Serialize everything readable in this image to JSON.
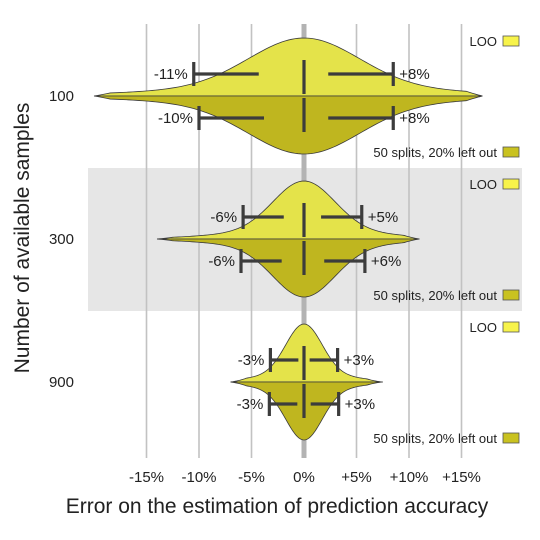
{
  "chart_data": {
    "type": "violin",
    "title": "",
    "xlabel": "Error on the estimation of prediction accuracy",
    "ylabel": "Number of available samples",
    "x_unit": "%",
    "xlim": [
      -18,
      19
    ],
    "x_ticks": [
      -15,
      -10,
      -5,
      0,
      5,
      10,
      15
    ],
    "x_tick_labels": [
      "-15%",
      "-10%",
      "-5%",
      "0%",
      "+5%",
      "+10%",
      "+15%"
    ],
    "grid": "vertical",
    "legend_placement": "right of each group",
    "colors": {
      "loo": "#e4e34a",
      "splits": "#bfb61f",
      "loo_legend": "#f7f34a",
      "splits_legend": "#c9c220",
      "band": "#e6e6e6"
    },
    "series": [
      {
        "name": "LOO",
        "side": "upper"
      },
      {
        "name": "50 splits, 20% left out",
        "side": "lower"
      }
    ],
    "groups": [
      {
        "label": "100",
        "shaded": false,
        "range": [
          -20,
          17
        ],
        "bandwidth": 5.2,
        "LOO": {
          "mean": 0,
          "low": -10.5,
          "high": 8.5,
          "low_label": "-11%",
          "high_label": "+8%"
        },
        "splits": {
          "mean": 0,
          "low": -10,
          "high": 8.5,
          "low_label": "-10%",
          "high_label": "+8%"
        }
      },
      {
        "label": "300",
        "shaded": true,
        "range": [
          -14,
          11
        ],
        "bandwidth": 2.9,
        "LOO": {
          "mean": 0,
          "low": -5.8,
          "high": 5.5,
          "low_label": "-6%",
          "high_label": "+5%"
        },
        "splits": {
          "mean": 0,
          "low": -6,
          "high": 5.8,
          "low_label": "-6%",
          "high_label": "+6%"
        }
      },
      {
        "label": "900",
        "shaded": false,
        "range": [
          -7,
          7.5
        ],
        "bandwidth": 1.7,
        "LOO": {
          "mean": 0,
          "low": -3.2,
          "high": 3.2,
          "low_label": "-3%",
          "high_label": "+3%"
        },
        "splits": {
          "mean": 0,
          "low": -3.3,
          "high": 3.3,
          "low_label": "-3%",
          "high_label": "+3%"
        }
      }
    ]
  }
}
